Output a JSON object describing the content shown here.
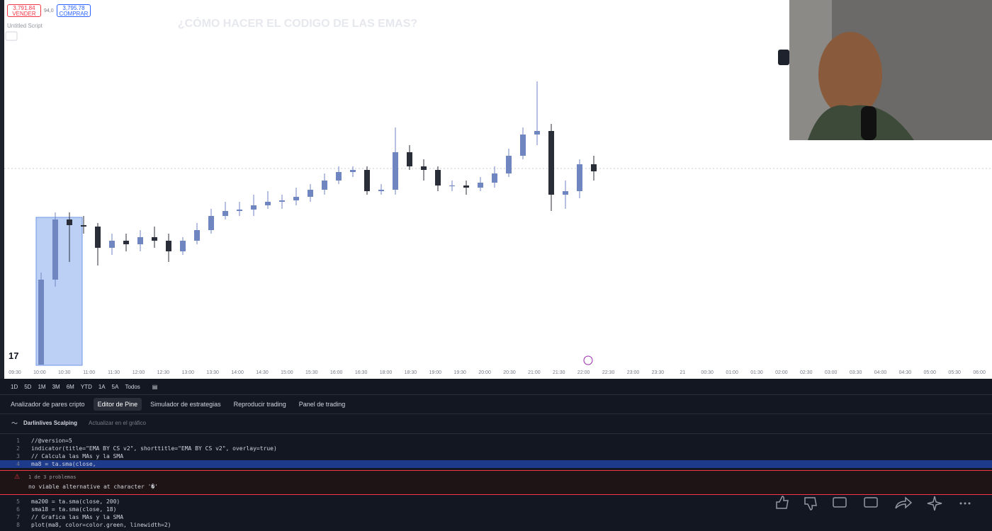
{
  "header": {
    "sell_price": "3,791.84",
    "sell_label": "VENDER",
    "spread": "94,0",
    "buy_price": "3,795.78",
    "buy_label": "COMPRAR",
    "script_name": "Untitled Script",
    "overlay_title": "¿CÓMO HACER EL CODIGO DE LAS EMAS?"
  },
  "chart_data": {
    "type": "candlestick",
    "ylim": [
      3740,
      3840
    ],
    "up_color": "#6f86c0",
    "down_color": "#2a2e39",
    "candles": {
      "open": [
        3740,
        3764,
        3781,
        3779.4,
        3779,
        3773,
        3775,
        3774,
        3776,
        3775,
        3772,
        3775,
        3778,
        3782,
        3783.4,
        3783.8,
        3785,
        3786,
        3786.4,
        3787.4,
        3789.4,
        3792,
        3794.4,
        3795,
        3789,
        3789.4,
        3800,
        3796,
        3795,
        3790.6,
        3790.6,
        3790,
        3791.4,
        3794,
        3799,
        3805,
        3806,
        3788,
        3789,
        3796.6
      ],
      "high": [
        3766,
        3783,
        3783,
        3782,
        3780,
        3777,
        3777,
        3778,
        3779,
        3777,
        3776,
        3780,
        3784,
        3786,
        3786,
        3788,
        3789,
        3788,
        3790,
        3791,
        3794,
        3796,
        3796,
        3796,
        3791,
        3807,
        3802,
        3798,
        3796,
        3792,
        3792,
        3793,
        3796,
        3801,
        3807,
        3820,
        3808,
        3792,
        3798,
        3799
      ],
      "low": [
        3740,
        3762,
        3769,
        3777,
        3768,
        3771,
        3772,
        3772,
        3773,
        3769,
        3771,
        3774,
        3777,
        3781,
        3782,
        3782,
        3784,
        3784,
        3785,
        3786,
        3788,
        3791,
        3793,
        3788,
        3788,
        3788,
        3795,
        3792,
        3789,
        3789,
        3788,
        3789,
        3790,
        3793,
        3798,
        3802,
        3783.4,
        3784,
        3787,
        3792
      ],
      "close": [
        3764,
        3781,
        3779.4,
        3779,
        3773,
        3775,
        3774,
        3776,
        3775,
        3772,
        3775,
        3778,
        3782,
        3783.4,
        3783.8,
        3785,
        3786,
        3786.4,
        3787.4,
        3789.4,
        3792,
        3794.4,
        3795,
        3789,
        3789.4,
        3800,
        3796,
        3795,
        3790.6,
        3790.6,
        3790,
        3791.4,
        3794,
        3799,
        3805,
        3806,
        3788,
        3789,
        3796.6,
        3794.6
      ]
    },
    "x_labels": [
      "09:30",
      "10:00",
      "10:30",
      "11:00",
      "11:30",
      "12:00",
      "12:30",
      "13:00",
      "13:30",
      "14:00",
      "14:30",
      "15:00",
      "15:30",
      "16:00",
      "16:30",
      "18:00",
      "18:30",
      "19:00",
      "19:30",
      "20:00",
      "20:30",
      "21:00",
      "21:30",
      "22:00",
      "22:30",
      "23:00",
      "23:30",
      "21",
      "00:30",
      "01:00",
      "01:30",
      "02:00",
      "02:30",
      "03:00",
      "03:30",
      "04:00",
      "04:30",
      "05:00",
      "05:30",
      "06:00"
    ]
  },
  "timeframes": [
    "1D",
    "5D",
    "1M",
    "3M",
    "6M",
    "YTD",
    "1A",
    "5A",
    "Todos"
  ],
  "tabs": [
    "Analizador de pares cripto",
    "Editor de Pine",
    "Simulador de estrategias",
    "Reproducir trading",
    "Panel de trading"
  ],
  "editor": {
    "script_title": "Darlinlives Scalping",
    "update_button": "Actualizar en el gráfico",
    "lines_before": [
      {
        "number": "1",
        "code": "//@version=5"
      },
      {
        "number": "2",
        "code": "indicator(title=\"EMA BY CS v2\", shorttitle=\"EMA BY CS v2\", overlay=true)"
      },
      {
        "number": "3",
        "code": "// Calcula las MAs y la SMA"
      },
      {
        "number": "4",
        "code": "ma8 = ta.sma(close, "
      }
    ],
    "problem_count": "1 de 3 problemas",
    "problem_message": "no viable alternative at character '�'",
    "lines_after": [
      {
        "number": "5",
        "code": "ma200 = ta.sma(close, 200)"
      },
      {
        "number": "6",
        "code": "sma18 = ta.sma(close, 18)"
      },
      {
        "number": "7",
        "code": "// Grafica las MAs y la SMA"
      },
      {
        "number": "8",
        "code": "plot(ma8, color=color.green, linewidth=2)"
      }
    ]
  }
}
